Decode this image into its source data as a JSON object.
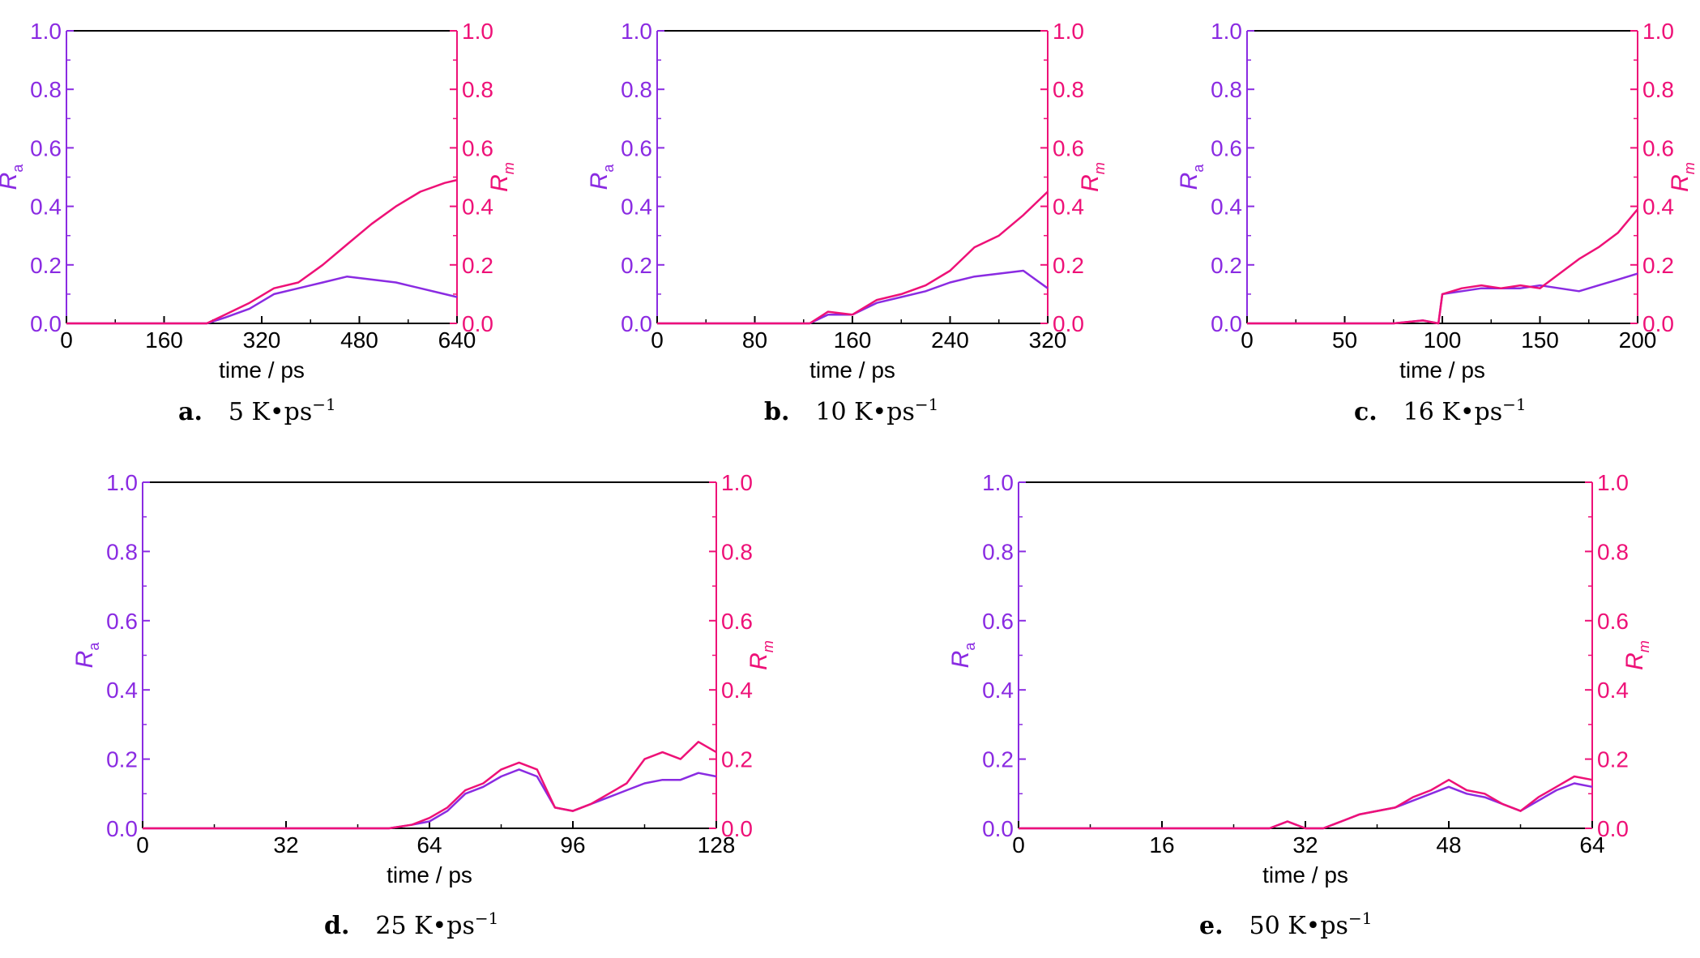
{
  "colors": {
    "Ra": "#8a2be2",
    "Rm": "#ee1177",
    "axis": "#000000"
  },
  "chart_data": [
    {
      "type": "line",
      "caption_label": "a.",
      "caption_text": "5 K•ps",
      "caption_sup": "−1",
      "xlabel": "time / ps",
      "ylabel_left": "R",
      "ylabel_left_sub": "a",
      "ylabel_right": "R",
      "ylabel_right_sub": "m",
      "xlim": [
        0,
        640
      ],
      "ylim": [
        0,
        1.0
      ],
      "xticks": [
        "0",
        "160",
        "320",
        "480",
        "640"
      ],
      "yticks": [
        "0.0",
        "0.2",
        "0.4",
        "0.6",
        "0.8",
        "1.0"
      ],
      "series": [
        {
          "x": [
            0,
            230,
            260,
            300,
            340,
            380,
            420,
            460,
            500,
            540,
            580,
            620,
            640
          ],
          "y": [
            0,
            0,
            0.02,
            0.05,
            0.1,
            0.12,
            0.14,
            0.16,
            0.15,
            0.14,
            0.12,
            0.1,
            0.09
          ]
        },
        {
          "x": [
            0,
            230,
            260,
            300,
            340,
            380,
            420,
            460,
            500,
            540,
            580,
            620,
            640
          ],
          "y": [
            0,
            0,
            0.03,
            0.07,
            0.12,
            0.14,
            0.2,
            0.27,
            0.34,
            0.4,
            0.45,
            0.48,
            0.49
          ]
        }
      ]
    },
    {
      "type": "line",
      "caption_label": "b.",
      "caption_text": "10 K•ps",
      "caption_sup": "−1",
      "xlabel": "time / ps",
      "ylabel_left": "R",
      "ylabel_left_sub": "a",
      "ylabel_right": "R",
      "ylabel_right_sub": "m",
      "xlim": [
        0,
        320
      ],
      "ylim": [
        0,
        1.0
      ],
      "xticks": [
        "0",
        "80",
        "160",
        "240",
        "320"
      ],
      "yticks": [
        "0.0",
        "0.2",
        "0.4",
        "0.6",
        "0.8",
        "1.0"
      ],
      "series": [
        {
          "x": [
            0,
            125,
            140,
            160,
            180,
            200,
            220,
            240,
            260,
            280,
            300,
            320
          ],
          "y": [
            0,
            0,
            0.03,
            0.03,
            0.07,
            0.09,
            0.11,
            0.14,
            0.16,
            0.17,
            0.18,
            0.12
          ]
        },
        {
          "x": [
            0,
            125,
            140,
            160,
            180,
            200,
            220,
            240,
            260,
            280,
            300,
            320
          ],
          "y": [
            0,
            0,
            0.04,
            0.03,
            0.08,
            0.1,
            0.13,
            0.18,
            0.26,
            0.3,
            0.37,
            0.45
          ]
        }
      ]
    },
    {
      "type": "line",
      "caption_label": "c.",
      "caption_text": "16 K•ps",
      "caption_sup": "−1",
      "xlabel": "time / ps",
      "ylabel_left": "R",
      "ylabel_left_sub": "a",
      "ylabel_right": "R",
      "ylabel_right_sub": "m",
      "xlim": [
        0,
        200
      ],
      "ylim": [
        0,
        1.0
      ],
      "xticks": [
        "0",
        "50",
        "100",
        "150",
        "200"
      ],
      "yticks": [
        "0.0",
        "0.2",
        "0.4",
        "0.6",
        "0.8",
        "1.0"
      ],
      "series": [
        {
          "x": [
            0,
            75,
            90,
            98,
            100,
            110,
            120,
            130,
            140,
            150,
            160,
            170,
            180,
            190,
            200
          ],
          "y": [
            0,
            0,
            0.01,
            0.0,
            0.1,
            0.11,
            0.12,
            0.12,
            0.12,
            0.13,
            0.12,
            0.11,
            0.13,
            0.15,
            0.17
          ]
        },
        {
          "x": [
            0,
            75,
            90,
            98,
            100,
            110,
            120,
            130,
            140,
            150,
            160,
            170,
            180,
            190,
            200
          ],
          "y": [
            0,
            0,
            0.01,
            0.0,
            0.1,
            0.12,
            0.13,
            0.12,
            0.13,
            0.12,
            0.17,
            0.22,
            0.26,
            0.31,
            0.39
          ]
        }
      ]
    },
    {
      "type": "line",
      "caption_label": "d.",
      "caption_text": "25 K•ps",
      "caption_sup": "−1",
      "xlabel": "time / ps",
      "ylabel_left": "R",
      "ylabel_left_sub": "a",
      "ylabel_right": "R",
      "ylabel_right_sub": "m",
      "xlim": [
        0,
        128
      ],
      "ylim": [
        0,
        1.0
      ],
      "xticks": [
        "0",
        "32",
        "64",
        "96",
        "128"
      ],
      "yticks": [
        "0.0",
        "0.2",
        "0.4",
        "0.6",
        "0.8",
        "1.0"
      ],
      "series": [
        {
          "x": [
            0,
            55,
            60,
            64,
            68,
            72,
            76,
            80,
            84,
            88,
            92,
            96,
            100,
            104,
            108,
            112,
            116,
            120,
            124,
            128
          ],
          "y": [
            0,
            0,
            0.01,
            0.02,
            0.05,
            0.1,
            0.12,
            0.15,
            0.17,
            0.15,
            0.06,
            0.05,
            0.07,
            0.09,
            0.11,
            0.13,
            0.14,
            0.14,
            0.16,
            0.15
          ]
        },
        {
          "x": [
            0,
            55,
            60,
            64,
            68,
            72,
            76,
            80,
            84,
            88,
            92,
            96,
            100,
            104,
            108,
            112,
            116,
            120,
            124,
            128
          ],
          "y": [
            0,
            0,
            0.01,
            0.03,
            0.06,
            0.11,
            0.13,
            0.17,
            0.19,
            0.17,
            0.06,
            0.05,
            0.07,
            0.1,
            0.13,
            0.2,
            0.22,
            0.2,
            0.25,
            0.22
          ]
        }
      ]
    },
    {
      "type": "line",
      "caption_label": "e.",
      "caption_text": "50 K•ps",
      "caption_sup": "−1",
      "xlabel": "time / ps",
      "ylabel_left": "R",
      "ylabel_left_sub": "a",
      "ylabel_right": "R",
      "ylabel_right_sub": "m",
      "xlim": [
        0,
        64
      ],
      "ylim": [
        0,
        1.0
      ],
      "xticks": [
        "0",
        "16",
        "32",
        "48",
        "64"
      ],
      "yticks": [
        "0.0",
        "0.2",
        "0.4",
        "0.6",
        "0.8",
        "1.0"
      ],
      "series": [
        {
          "x": [
            0,
            28,
            30,
            32,
            34,
            36,
            38,
            40,
            42,
            44,
            46,
            48,
            50,
            52,
            54,
            56,
            58,
            60,
            62,
            64
          ],
          "y": [
            0,
            0,
            0.02,
            0.0,
            0.0,
            0.02,
            0.04,
            0.05,
            0.06,
            0.08,
            0.1,
            0.12,
            0.1,
            0.09,
            0.07,
            0.05,
            0.08,
            0.11,
            0.13,
            0.12
          ]
        },
        {
          "x": [
            0,
            28,
            30,
            32,
            34,
            36,
            38,
            40,
            42,
            44,
            46,
            48,
            50,
            52,
            54,
            56,
            58,
            60,
            62,
            64
          ],
          "y": [
            0,
            0,
            0.02,
            0.0,
            0.0,
            0.02,
            0.04,
            0.05,
            0.06,
            0.09,
            0.11,
            0.14,
            0.11,
            0.1,
            0.07,
            0.05,
            0.09,
            0.12,
            0.15,
            0.14
          ]
        }
      ]
    }
  ]
}
